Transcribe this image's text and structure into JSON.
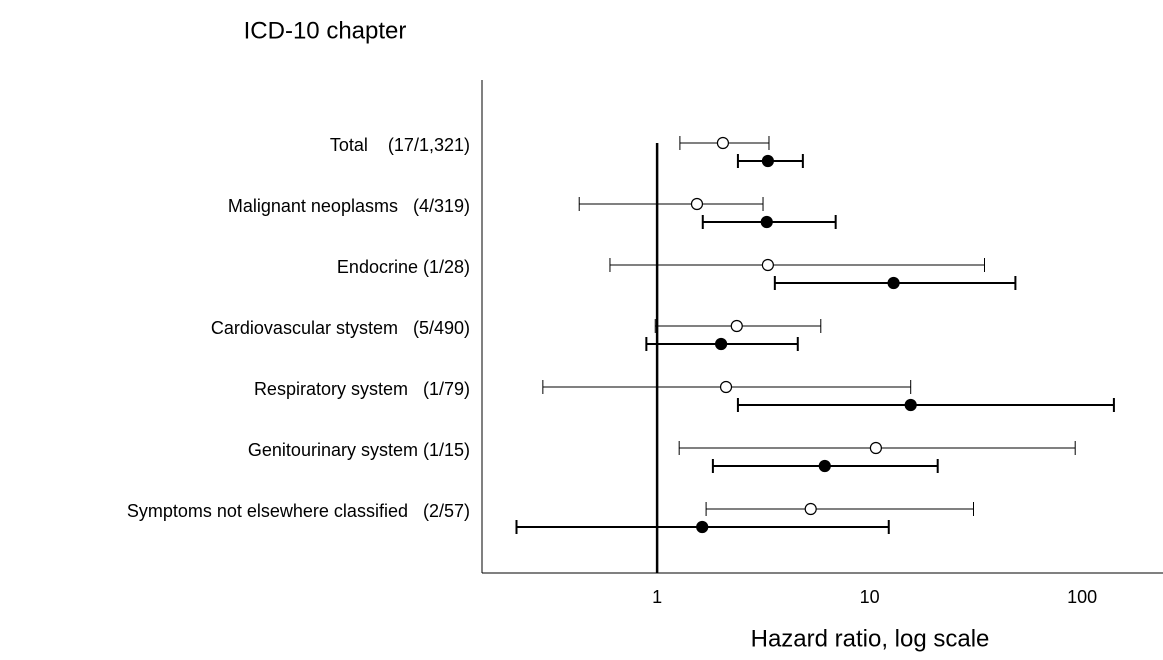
{
  "chart_data": {
    "type": "forest",
    "title": "ICD-10 chapter",
    "x_label": "Hazard ratio, log scale",
    "x_scale": "log",
    "xlim": [
      0.15,
      240
    ],
    "xticks": [
      1,
      10,
      100
    ],
    "reference_line": 1,
    "categories": [
      "Total    (17/1,321)",
      "Malignant neoplasms   (4/319)",
      "Endocrine (1/28)",
      "Cardiovascular stystem   (5/490)",
      "Respiratory system   (1/79)",
      "Genitourinary system (1/15)",
      "Symptoms not elsewhere classified   (2/57)"
    ],
    "series": [
      {
        "marker": "open",
        "color": "#000000",
        "values": [
          2.04,
          1.54,
          3.32,
          2.37,
          2.11,
          10.7,
          5.28
        ],
        "lower": [
          1.28,
          0.43,
          0.6,
          0.98,
          0.29,
          1.27,
          1.7
        ],
        "upper": [
          3.36,
          3.15,
          34.7,
          5.89,
          15.6,
          92.7,
          30.8
        ]
      },
      {
        "marker": "filled",
        "color": "#000000",
        "values": [
          3.32,
          3.28,
          12.96,
          2.0,
          15.6,
          6.15,
          1.63
        ],
        "lower": [
          2.4,
          1.64,
          3.58,
          0.89,
          2.4,
          1.83,
          0.218
        ],
        "upper": [
          4.85,
          6.92,
          48.5,
          4.59,
          141,
          20.9,
          12.3
        ]
      }
    ]
  }
}
